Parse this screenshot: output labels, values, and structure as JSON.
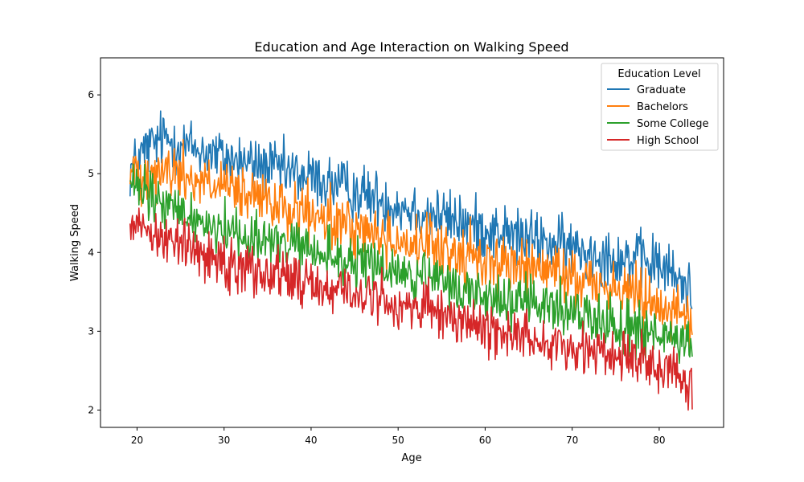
{
  "chart_data": {
    "type": "line",
    "title": "Education and Age Interaction on Walking Speed",
    "xlabel": "Age",
    "ylabel": "Walking Speed",
    "xlim": [
      15.8,
      87.4
    ],
    "ylim": [
      1.78,
      6.47
    ],
    "xticks": [
      20,
      30,
      40,
      50,
      60,
      70,
      80
    ],
    "yticks": [
      2,
      3,
      4,
      5,
      6
    ],
    "grid": false,
    "legend": {
      "title": "Education Level",
      "position": "top-right"
    },
    "x_range": [
      19.2,
      83.8
    ],
    "series": [
      {
        "name": "Graduate",
        "color": "#1f77b4",
        "trend": [
          [
            19.2,
            5.05
          ],
          [
            21,
            5.3
          ],
          [
            23,
            5.45
          ],
          [
            30,
            5.2
          ],
          [
            40,
            4.95
          ],
          [
            50,
            4.6
          ],
          [
            60,
            4.3
          ],
          [
            70,
            4.05
          ],
          [
            80,
            3.85
          ],
          [
            83.8,
            3.5
          ]
        ],
        "noise": 0.55,
        "min": 2.9,
        "max": 6.25
      },
      {
        "name": "Bachelors",
        "color": "#ff7f0e",
        "trend": [
          [
            19.2,
            5.0
          ],
          [
            22,
            5.05
          ],
          [
            25,
            5.0
          ],
          [
            30,
            4.8
          ],
          [
            40,
            4.45
          ],
          [
            50,
            4.15
          ],
          [
            60,
            3.9
          ],
          [
            70,
            3.7
          ],
          [
            80,
            3.4
          ],
          [
            83.8,
            3.1
          ]
        ],
        "noise": 0.55,
        "min": 2.5,
        "max": 6.05
      },
      {
        "name": "Some College",
        "color": "#2ca02c",
        "trend": [
          [
            19.2,
            4.85
          ],
          [
            22,
            4.65
          ],
          [
            25,
            4.5
          ],
          [
            30,
            4.3
          ],
          [
            40,
            4.0
          ],
          [
            50,
            3.75
          ],
          [
            60,
            3.45
          ],
          [
            70,
            3.25
          ],
          [
            80,
            2.95
          ],
          [
            83.8,
            2.75
          ]
        ],
        "noise": 0.5,
        "min": 2.0,
        "max": 5.45
      },
      {
        "name": "High School",
        "color": "#d62728",
        "trend": [
          [
            19.2,
            4.45
          ],
          [
            22,
            4.25
          ],
          [
            25,
            4.1
          ],
          [
            30,
            3.9
          ],
          [
            40,
            3.6
          ],
          [
            50,
            3.35
          ],
          [
            60,
            3.05
          ],
          [
            70,
            2.8
          ],
          [
            80,
            2.6
          ],
          [
            83.8,
            2.35
          ]
        ],
        "noise": 0.5,
        "min": 2.0,
        "max": 4.9
      }
    ]
  }
}
